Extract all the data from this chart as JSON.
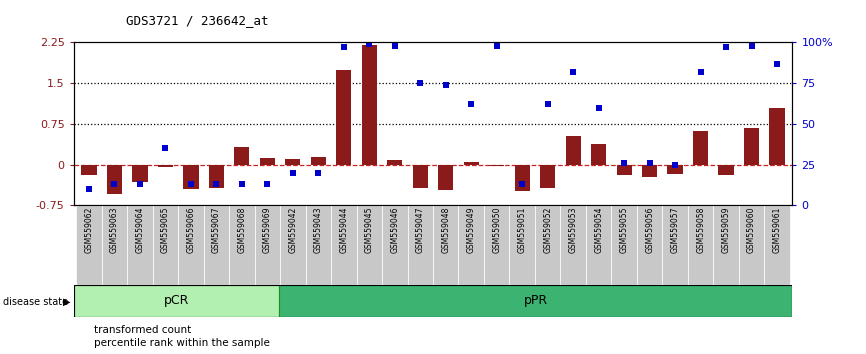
{
  "title": "GDS3721 / 236642_at",
  "samples": [
    "GSM559062",
    "GSM559063",
    "GSM559064",
    "GSM559065",
    "GSM559066",
    "GSM559067",
    "GSM559068",
    "GSM559069",
    "GSM559042",
    "GSM559043",
    "GSM559044",
    "GSM559045",
    "GSM559046",
    "GSM559047",
    "GSM559048",
    "GSM559049",
    "GSM559050",
    "GSM559051",
    "GSM559052",
    "GSM559053",
    "GSM559054",
    "GSM559055",
    "GSM559056",
    "GSM559057",
    "GSM559058",
    "GSM559059",
    "GSM559060",
    "GSM559061"
  ],
  "transformed_count": [
    -0.2,
    -0.55,
    -0.32,
    -0.05,
    -0.45,
    -0.43,
    0.32,
    0.12,
    0.1,
    0.14,
    1.75,
    2.2,
    0.08,
    -0.43,
    -0.47,
    0.05,
    -0.02,
    -0.48,
    -0.43,
    0.53,
    0.38,
    -0.2,
    -0.22,
    -0.18,
    0.62,
    -0.2,
    0.68,
    1.05
  ],
  "percentile_rank_pct": [
    10,
    13,
    13,
    35,
    13,
    13,
    13,
    13,
    20,
    20,
    97,
    99,
    98,
    75,
    74,
    62,
    98,
    13,
    62,
    82,
    60,
    26,
    26,
    25,
    82,
    97,
    98,
    87
  ],
  "pcr_count": 8,
  "ppr_count": 20,
  "pCR_color": "#B2F0B2",
  "pPR_color": "#3CB371",
  "bar_color": "#8B1A1A",
  "dot_color": "#0000CD",
  "ylim_left": [
    -0.75,
    2.25
  ],
  "ylim_right": [
    0,
    100
  ],
  "yticks_left": [
    -0.75,
    0,
    0.75,
    1.5,
    2.25
  ],
  "ytick_labels_left": [
    "-0.75",
    "0",
    "0.75",
    "1.5",
    "2.25"
  ],
  "yticks_right": [
    0,
    25,
    50,
    75,
    100
  ],
  "ytick_labels_right": [
    "0",
    "25",
    "50",
    "75",
    "100%"
  ],
  "hlines": [
    0.75,
    1.5
  ],
  "zero_line": 0
}
